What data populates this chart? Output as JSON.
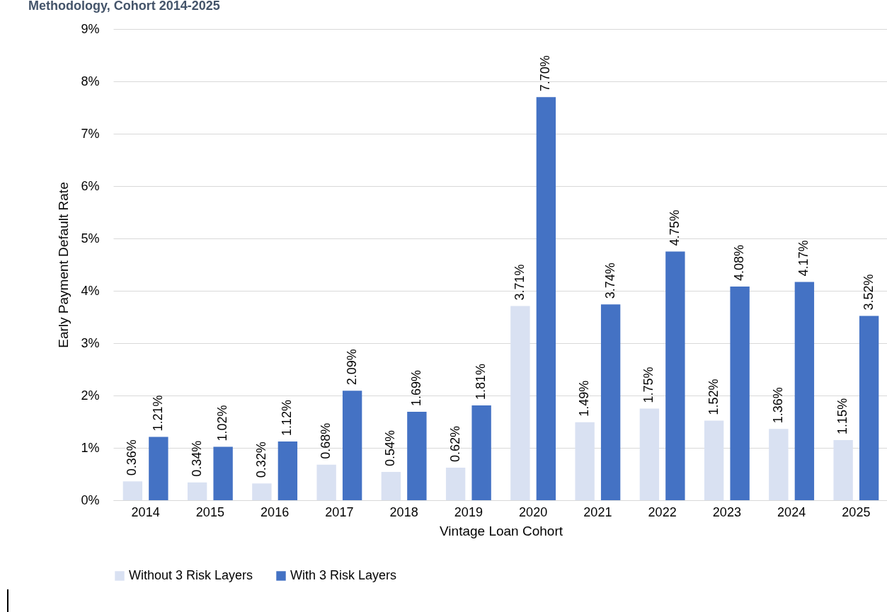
{
  "chart_data": {
    "type": "bar",
    "title": "Methodology, Cohort 2014-2025",
    "xlabel": "Vintage Loan Cohort",
    "ylabel": "Early Payment Default Rate",
    "categories": [
      "2014",
      "2015",
      "2016",
      "2017",
      "2018",
      "2019",
      "2020",
      "2021",
      "2022",
      "2023",
      "2024",
      "2025"
    ],
    "series": [
      {
        "name": "Without 3 Risk Layers",
        "color": "#d9e1f2",
        "values": [
          0.36,
          0.34,
          0.32,
          0.68,
          0.54,
          0.62,
          3.71,
          1.49,
          1.75,
          1.52,
          1.36,
          1.15
        ],
        "value_labels": [
          "0.36%",
          "0.34%",
          "0.32%",
          "0.68%",
          "0.54%",
          "0.62%",
          "3.71%",
          "1.49%",
          "1.75%",
          "1.52%",
          "1.36%",
          "1.15%"
        ]
      },
      {
        "name": "With 3 Risk Layers",
        "color": "#4472c4",
        "values": [
          1.21,
          1.02,
          1.12,
          2.09,
          1.69,
          1.81,
          7.7,
          3.74,
          4.75,
          4.08,
          4.17,
          3.52
        ],
        "value_labels": [
          "1.21%",
          "1.02%",
          "1.12%",
          "2.09%",
          "1.69%",
          "1.81%",
          "7.70%",
          "3.74%",
          "4.75%",
          "4.08%",
          "4.17%",
          "3.52%"
        ]
      }
    ],
    "ylim": [
      0,
      9
    ],
    "yticks": [
      {
        "value": 0,
        "label": "0%"
      },
      {
        "value": 1,
        "label": "1%"
      },
      {
        "value": 2,
        "label": "2%"
      },
      {
        "value": 3,
        "label": "3%"
      },
      {
        "value": 4,
        "label": "4%"
      },
      {
        "value": 5,
        "label": "5%"
      },
      {
        "value": 6,
        "label": "6%"
      },
      {
        "value": 7,
        "label": "7%"
      },
      {
        "value": 8,
        "label": "8%"
      },
      {
        "value": 9,
        "label": "9%"
      }
    ],
    "grid": "y",
    "legend": "bottom"
  }
}
